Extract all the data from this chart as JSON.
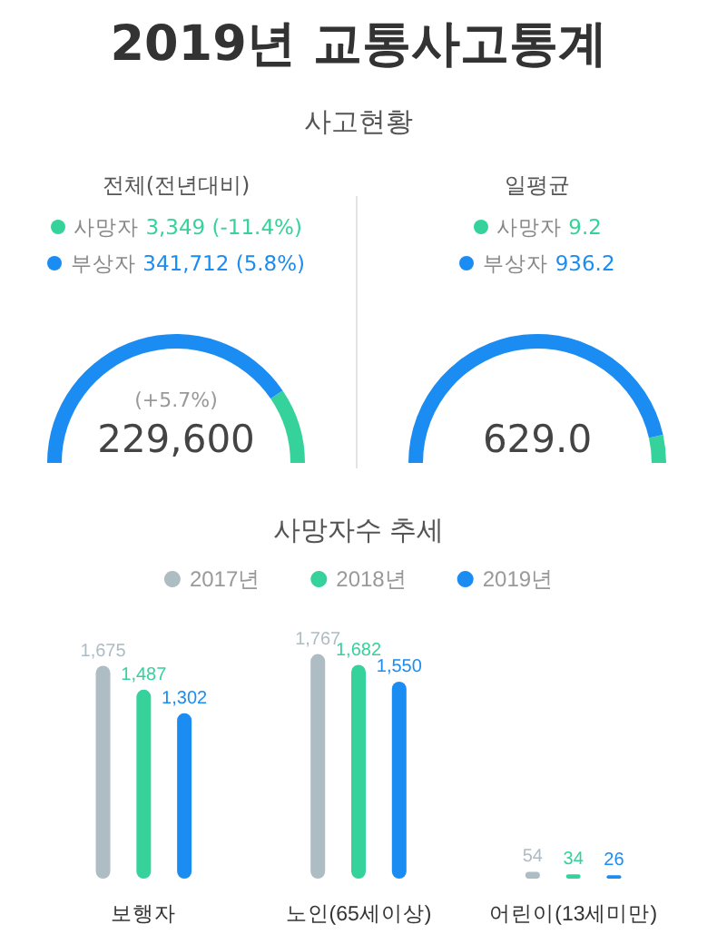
{
  "chart_data": [
    {
      "type": "donut",
      "title": "2019년 교통사고통계",
      "subtitle": "사고현황",
      "categories": [
        "사망자",
        "부상자"
      ],
      "values": [
        19,
        81
      ],
      "colors": [
        "#35d39b",
        "#1b8cf2"
      ],
      "legend": "top",
      "annotations": [
        "전체(전년대비)",
        "3,349 (-11.4%)",
        "341,712 (5.8%)",
        "(+5.7%)",
        "229,600"
      ]
    },
    {
      "type": "donut",
      "categories": [
        "사망자",
        "부상자"
      ],
      "values": [
        7,
        93
      ],
      "colors": [
        "#35d39b",
        "#1b8cf2"
      ],
      "legend": "top",
      "annotations": [
        "일평균",
        "9.2",
        "936.2",
        "629.0"
      ]
    },
    {
      "type": "bar",
      "title": "사망자수 추세",
      "categories": [
        "보행자",
        "노인(65세이상)",
        "어린이(13세미만)"
      ],
      "series": [
        {
          "name": "2017년",
          "color": "#aebcc3",
          "values": [
            1675,
            1767,
            54
          ],
          "value_labels": [
            "1,675",
            "1,767",
            "54"
          ]
        },
        {
          "name": "2018년",
          "color": "#35d39b",
          "values": [
            1487,
            1682,
            34
          ],
          "value_labels": [
            "1,487",
            "1,682",
            "34"
          ]
        },
        {
          "name": "2019년",
          "color": "#1b8cf2",
          "values": [
            1302,
            1550,
            26
          ],
          "value_labels": [
            "1,302",
            "1,550",
            "26"
          ]
        }
      ],
      "legend": "top"
    }
  ]
}
